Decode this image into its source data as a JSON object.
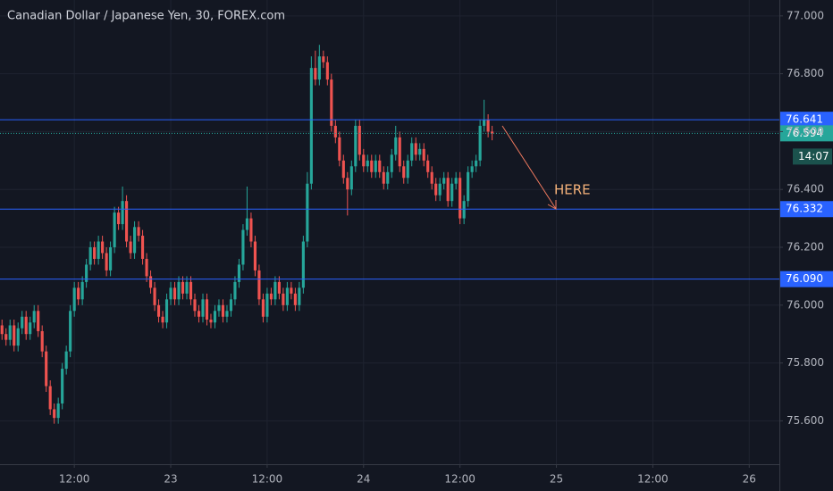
{
  "chart_data": {
    "type": "candlestick",
    "title": "Canadian Dollar / Japanese Yen, 30, FOREX.com",
    "up_color": "#26a69a",
    "down_color": "#ef5350",
    "grid": true,
    "xlim": [
      -0.5,
      193.5
    ],
    "xticks": [
      {
        "value": 18,
        "label": "12:00"
      },
      {
        "value": 42,
        "label": "23"
      },
      {
        "value": 66,
        "label": "12:00"
      },
      {
        "value": 90,
        "label": "24"
      },
      {
        "value": 114,
        "label": "12:00"
      },
      {
        "value": 138,
        "label": "25"
      },
      {
        "value": 162,
        "label": "12:00"
      },
      {
        "value": 186,
        "label": "26"
      }
    ],
    "ylim": [
      75.45,
      77.055
    ],
    "yticks": [
      {
        "value": 75.6,
        "label": "75.600"
      },
      {
        "value": 75.8,
        "label": "75.800"
      },
      {
        "value": 76,
        "label": "76.000"
      },
      {
        "value": 76.2,
        "label": "76.200"
      },
      {
        "value": 76.4,
        "label": "76.400"
      },
      {
        "value": 76.6,
        "label": "76.600"
      },
      {
        "value": 76.8,
        "label": "76.800"
      },
      {
        "value": 77,
        "label": "77.000"
      }
    ],
    "open": [
      75.93,
      75.9,
      75.88,
      75.93,
      75.86,
      75.92,
      75.96,
      75.9,
      75.94,
      75.98,
      75.91,
      75.84,
      75.72,
      75.64,
      75.61,
      75.66,
      75.78,
      75.84,
      75.98,
      76.06,
      76.02,
      76.08,
      76.14,
      76.2,
      76.16,
      76.22,
      76.18,
      76.12,
      76.2,
      76.32,
      76.28,
      76.36,
      76.22,
      76.18,
      76.27,
      76.24,
      76.16,
      76.1,
      76.06,
      76.0,
      75.96,
      75.94,
      76.02,
      76.06,
      76.02,
      76.08,
      76.04,
      76.08,
      76.02,
      75.98,
      75.96,
      76.02,
      75.95,
      75.94,
      75.98,
      76.0,
      75.96,
      75.98,
      76.02,
      76.08,
      76.14,
      76.26,
      76.3,
      76.22,
      76.12,
      76.02,
      75.96,
      76.04,
      76.02,
      76.08,
      76.04,
      76.0,
      76.06,
      76.04,
      76.0,
      76.06,
      76.22,
      76.42,
      76.82,
      76.78,
      76.86,
      76.84,
      76.78,
      76.62,
      76.58,
      76.5,
      76.44,
      76.4,
      76.48,
      76.62,
      76.52,
      76.48,
      76.5,
      76.46,
      76.5,
      76.46,
      76.42,
      76.46,
      76.52,
      76.58,
      76.48,
      76.44,
      76.5,
      76.56,
      76.52,
      76.54,
      76.5,
      76.46,
      76.42,
      76.38,
      76.42,
      76.44,
      76.36,
      76.42,
      76.44,
      76.3,
      76.36,
      76.46,
      76.48,
      76.5,
      76.62,
      76.64,
      76.6
    ],
    "high": [
      75.95,
      75.92,
      75.95,
      75.95,
      75.94,
      75.98,
      75.98,
      75.96,
      76.0,
      76.0,
      75.93,
      75.86,
      75.74,
      75.66,
      75.68,
      75.8,
      75.86,
      76.0,
      76.08,
      76.08,
      76.1,
      76.16,
      76.22,
      76.22,
      76.24,
      76.24,
      76.2,
      76.22,
      76.34,
      76.34,
      76.41,
      76.38,
      76.24,
      76.29,
      76.29,
      76.26,
      76.18,
      76.12,
      76.08,
      76.02,
      75.98,
      76.04,
      76.08,
      76.08,
      76.1,
      76.1,
      76.1,
      76.1,
      76.04,
      76.0,
      76.04,
      76.04,
      75.97,
      76.0,
      76.02,
      76.02,
      76.0,
      76.04,
      76.1,
      76.16,
      76.28,
      76.41,
      76.32,
      76.24,
      76.14,
      76.04,
      76.06,
      76.06,
      76.1,
      76.1,
      76.06,
      76.08,
      76.08,
      76.06,
      76.08,
      76.24,
      76.46,
      76.86,
      76.88,
      76.9,
      76.88,
      76.86,
      76.8,
      76.64,
      76.6,
      76.52,
      76.46,
      76.5,
      76.64,
      76.64,
      76.54,
      76.52,
      76.52,
      76.52,
      76.52,
      76.48,
      76.48,
      76.54,
      76.62,
      76.6,
      76.5,
      76.52,
      76.58,
      76.58,
      76.56,
      76.56,
      76.52,
      76.48,
      76.44,
      76.44,
      76.46,
      76.46,
      76.44,
      76.46,
      76.46,
      76.38,
      76.48,
      76.5,
      76.52,
      76.64,
      76.71,
      76.66,
      76.62
    ],
    "low": [
      75.88,
      75.86,
      75.86,
      75.84,
      75.84,
      75.9,
      75.88,
      75.88,
      75.92,
      75.89,
      75.82,
      75.7,
      75.62,
      75.59,
      75.59,
      75.64,
      75.76,
      75.82,
      75.96,
      76.0,
      76.0,
      76.06,
      76.12,
      76.14,
      76.14,
      76.16,
      76.1,
      76.1,
      76.18,
      76.26,
      76.26,
      76.2,
      76.16,
      76.16,
      76.22,
      76.14,
      76.08,
      76.04,
      75.98,
      75.94,
      75.92,
      75.92,
      76.0,
      76.0,
      76.0,
      76.02,
      76.02,
      76.0,
      75.96,
      75.94,
      75.94,
      75.93,
      75.92,
      75.92,
      75.96,
      75.94,
      75.94,
      75.96,
      76.0,
      76.06,
      76.12,
      76.24,
      76.2,
      76.1,
      76.0,
      75.94,
      75.94,
      76.0,
      76.0,
      76.02,
      75.98,
      75.98,
      76.02,
      75.98,
      75.98,
      76.04,
      76.2,
      76.4,
      76.76,
      76.76,
      76.82,
      76.76,
      76.6,
      76.56,
      76.48,
      76.42,
      76.31,
      76.38,
      76.46,
      76.5,
      76.46,
      76.46,
      76.44,
      76.44,
      76.44,
      76.4,
      76.4,
      76.44,
      76.5,
      76.46,
      76.42,
      76.42,
      76.48,
      76.5,
      76.5,
      76.48,
      76.44,
      76.4,
      76.36,
      76.36,
      76.4,
      76.34,
      76.34,
      76.4,
      76.28,
      76.28,
      76.34,
      76.44,
      76.46,
      76.48,
      76.6,
      76.58,
      76.57
    ],
    "close": [
      75.9,
      75.88,
      75.93,
      75.86,
      75.92,
      75.96,
      75.9,
      75.94,
      75.98,
      75.91,
      75.84,
      75.72,
      75.64,
      75.61,
      75.66,
      75.78,
      75.84,
      75.98,
      76.06,
      76.02,
      76.08,
      76.14,
      76.2,
      76.16,
      76.22,
      76.18,
      76.12,
      76.2,
      76.32,
      76.28,
      76.36,
      76.22,
      76.18,
      76.27,
      76.24,
      76.16,
      76.1,
      76.06,
      76.0,
      75.96,
      75.94,
      76.02,
      76.06,
      76.02,
      76.08,
      76.04,
      76.08,
      76.02,
      75.98,
      75.96,
      76.02,
      75.95,
      75.94,
      75.98,
      76.0,
      75.96,
      75.98,
      76.02,
      76.08,
      76.14,
      76.26,
      76.3,
      76.22,
      76.12,
      76.02,
      75.96,
      76.04,
      76.02,
      76.08,
      76.04,
      76.0,
      76.06,
      76.04,
      76.0,
      76.06,
      76.22,
      76.42,
      76.82,
      76.78,
      76.86,
      76.84,
      76.78,
      76.62,
      76.58,
      76.5,
      76.44,
      76.4,
      76.48,
      76.62,
      76.52,
      76.48,
      76.5,
      76.46,
      76.5,
      76.46,
      76.42,
      76.46,
      76.52,
      76.58,
      76.48,
      76.44,
      76.5,
      76.56,
      76.52,
      76.54,
      76.5,
      76.46,
      76.42,
      76.38,
      76.42,
      76.44,
      76.36,
      76.42,
      76.44,
      76.3,
      76.36,
      76.46,
      76.48,
      76.5,
      76.62,
      76.64,
      76.6,
      76.594
    ],
    "hlines": [
      76.641,
      76.332,
      {
        "value": 76.09,
        "label": "76.090"
      }
    ],
    "hline_color": "#2962ff",
    "last_price": 76.594,
    "countdown": "14:07",
    "annotation": "HERE"
  }
}
